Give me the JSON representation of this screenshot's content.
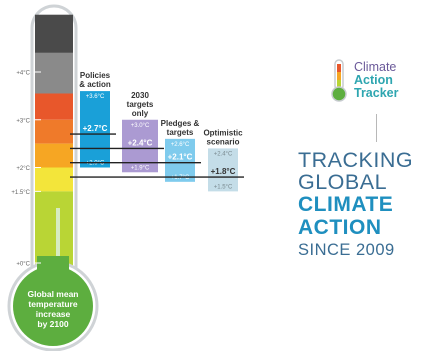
{
  "chart_data": {
    "type": "bar",
    "axis": {
      "unit": "°C",
      "ylim": [
        0,
        5
      ],
      "ticks": [
        {
          "value": 4,
          "label": "+4°C"
        },
        {
          "value": 3,
          "label": "+3°C"
        },
        {
          "value": 2,
          "label": "+2°C"
        },
        {
          "value": 1.5,
          "label": "+1.5°C"
        },
        {
          "value": 0,
          "label": "+0°C"
        }
      ]
    },
    "thermometer_label": [
      "Global mean",
      "temperature",
      "increase",
      "by 2100"
    ],
    "scenarios": [
      {
        "title": [
          "Policies",
          "& action"
        ],
        "low": 2.0,
        "median": 2.7,
        "high": 3.6,
        "low_label": "+2.0°C",
        "median_label": "+2.7°C",
        "high_label": "+3.6°C",
        "color": "#1aa0d8"
      },
      {
        "title": [
          "2030",
          "targets",
          "only"
        ],
        "low": 1.9,
        "median": 2.4,
        "high": 3.0,
        "low_label": "+1.9°C",
        "median_label": "+2.4°C",
        "high_label": "+3.0°C",
        "color": "#ab9ad2"
      },
      {
        "title": [
          "Pledges &",
          "targets"
        ],
        "low": 1.7,
        "median": 2.1,
        "high": 2.6,
        "low_label": "+1.7°C",
        "median_label": "+2.1°C",
        "high_label": "+2.6°C",
        "color": "#7fcbed"
      },
      {
        "title": [
          "Optimistic",
          "scenario"
        ],
        "low": 1.5,
        "median": 1.8,
        "high": 2.4,
        "low_label": "+1.5°C",
        "median_label": "+1.8°C",
        "high_label": "+2.4°C",
        "color": "#c4dde8"
      }
    ]
  },
  "brand": {
    "logo_line1": "Climate",
    "logo_line2": "Action",
    "logo_line3": "Tracker",
    "tagline": [
      "TRACKING",
      "GLOBAL",
      "CLIMATE",
      "ACTION",
      "SINCE 2009"
    ],
    "colors": {
      "purple": "#6b5a9a",
      "teal": "#2ea6b0",
      "navy": "#3a6d93",
      "blue": "#1f8fbf"
    }
  }
}
